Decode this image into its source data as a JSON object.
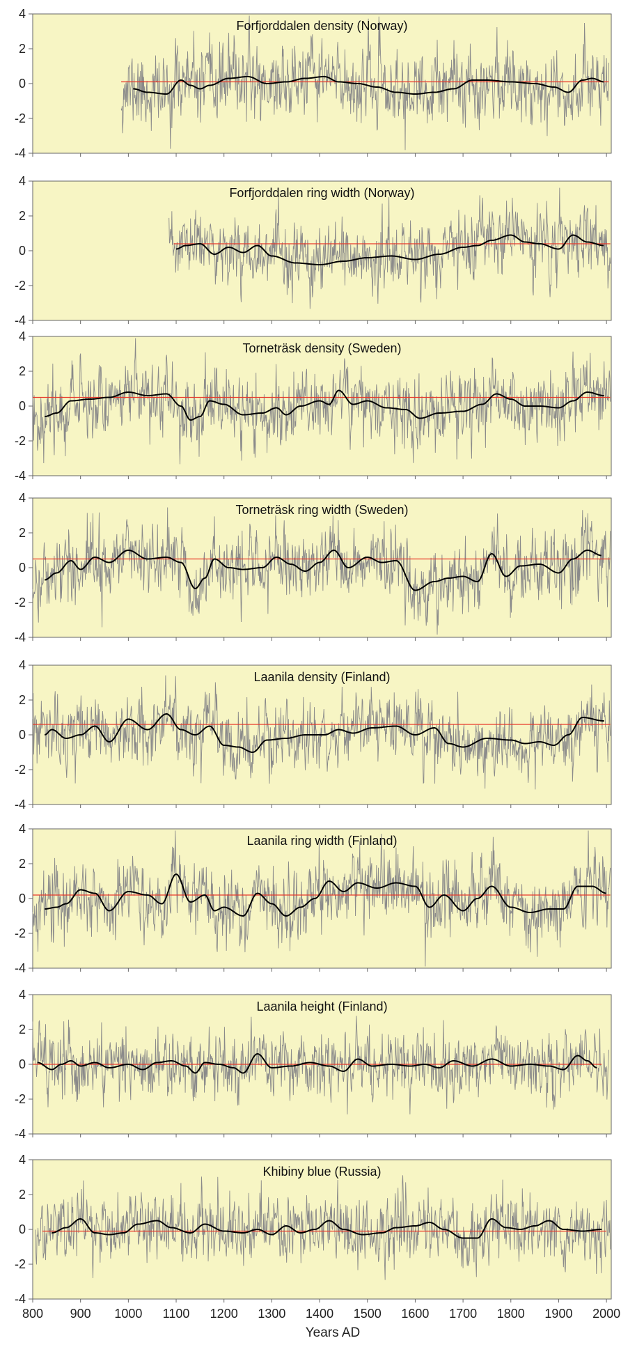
{
  "xlabel": "Years AD",
  "colors": {
    "panel_bg": "#f7f5c4",
    "raw_series": "#8a8a8a",
    "smooth_series": "#000000",
    "mean_line": "#e8392a",
    "axis": "#666666"
  },
  "x_ticks": [
    800,
    900,
    1000,
    1100,
    1200,
    1300,
    1400,
    1500,
    1600,
    1700,
    1800,
    1900,
    2000
  ],
  "chart_data": [
    {
      "type": "line",
      "title": "Forfjorddalen density (Norway)",
      "xlim": [
        800,
        2010
      ],
      "ylim": [
        -4,
        4
      ],
      "yticks": [
        4,
        2,
        0,
        -2,
        -4
      ],
      "raw": {
        "start": 985,
        "end": 2005,
        "noise": 1.0,
        "seed": 11
      },
      "mean": {
        "value": 0.1,
        "start": 985,
        "end": 2005
      },
      "smooth_start": 1010,
      "smooth_end": 1995,
      "smooth": [
        [
          1010,
          -0.3
        ],
        [
          1040,
          -0.5
        ],
        [
          1080,
          -0.6
        ],
        [
          1110,
          0.2
        ],
        [
          1130,
          -0.1
        ],
        [
          1150,
          -0.3
        ],
        [
          1170,
          -0.1
        ],
        [
          1210,
          0.3
        ],
        [
          1250,
          0.4
        ],
        [
          1290,
          0.0
        ],
        [
          1330,
          0.1
        ],
        [
          1370,
          0.3
        ],
        [
          1410,
          0.4
        ],
        [
          1440,
          0.1
        ],
        [
          1480,
          0.0
        ],
        [
          1520,
          -0.2
        ],
        [
          1560,
          -0.5
        ],
        [
          1600,
          -0.6
        ],
        [
          1640,
          -0.5
        ],
        [
          1680,
          -0.3
        ],
        [
          1720,
          0.2
        ],
        [
          1750,
          0.2
        ],
        [
          1800,
          0.1
        ],
        [
          1850,
          0.0
        ],
        [
          1890,
          -0.2
        ],
        [
          1920,
          -0.5
        ],
        [
          1950,
          0.2
        ],
        [
          1970,
          0.3
        ],
        [
          1995,
          0.1
        ]
      ]
    },
    {
      "type": "line",
      "title": "Forfjorddalen ring width (Norway)",
      "xlim": [
        800,
        2010
      ],
      "ylim": [
        -4,
        4
      ],
      "yticks": [
        4,
        2,
        0,
        -2,
        -4
      ],
      "raw": {
        "start": 1085,
        "end": 2008,
        "noise": 0.9,
        "seed": 23
      },
      "mean": {
        "value": 0.4,
        "start": 1095,
        "end": 2008
      },
      "smooth_start": 1100,
      "smooth_end": 1995,
      "smooth": [
        [
          1100,
          0.1
        ],
        [
          1120,
          0.3
        ],
        [
          1150,
          0.4
        ],
        [
          1180,
          -0.2
        ],
        [
          1210,
          0.2
        ],
        [
          1240,
          -0.1
        ],
        [
          1270,
          0.3
        ],
        [
          1300,
          -0.3
        ],
        [
          1350,
          -0.7
        ],
        [
          1400,
          -0.8
        ],
        [
          1450,
          -0.6
        ],
        [
          1500,
          -0.4
        ],
        [
          1550,
          -0.3
        ],
        [
          1600,
          -0.5
        ],
        [
          1650,
          -0.2
        ],
        [
          1700,
          0.2
        ],
        [
          1730,
          0.3
        ],
        [
          1760,
          0.6
        ],
        [
          1800,
          0.9
        ],
        [
          1830,
          0.5
        ],
        [
          1860,
          0.4
        ],
        [
          1900,
          0.1
        ],
        [
          1930,
          0.9
        ],
        [
          1960,
          0.5
        ],
        [
          1995,
          0.3
        ]
      ]
    },
    {
      "type": "line",
      "title": "Torneträsk density (Sweden)",
      "xlim": [
        800,
        2010
      ],
      "ylim": [
        -4,
        4
      ],
      "yticks": [
        4,
        2,
        0,
        -2,
        -4
      ],
      "raw": {
        "start": 800,
        "end": 2008,
        "noise": 0.95,
        "seed": 37
      },
      "mean": {
        "value": 0.5,
        "start": 800,
        "end": 2008
      },
      "smooth_start": 825,
      "smooth_end": 1995,
      "smooth": [
        [
          825,
          -0.6
        ],
        [
          850,
          -0.4
        ],
        [
          880,
          0.3
        ],
        [
          920,
          0.4
        ],
        [
          960,
          0.5
        ],
        [
          1000,
          0.8
        ],
        [
          1040,
          0.6
        ],
        [
          1080,
          0.7
        ],
        [
          1110,
          0.0
        ],
        [
          1130,
          -0.8
        ],
        [
          1150,
          -0.6
        ],
        [
          1170,
          0.3
        ],
        [
          1200,
          0.1
        ],
        [
          1240,
          -0.5
        ],
        [
          1280,
          -0.4
        ],
        [
          1310,
          -0.1
        ],
        [
          1330,
          -0.5
        ],
        [
          1360,
          0.0
        ],
        [
          1400,
          0.3
        ],
        [
          1420,
          0.1
        ],
        [
          1440,
          0.9
        ],
        [
          1470,
          0.1
        ],
        [
          1500,
          0.3
        ],
        [
          1540,
          -0.1
        ],
        [
          1580,
          -0.2
        ],
        [
          1610,
          -0.7
        ],
        [
          1650,
          -0.4
        ],
        [
          1700,
          -0.3
        ],
        [
          1740,
          0.1
        ],
        [
          1770,
          0.7
        ],
        [
          1800,
          0.4
        ],
        [
          1830,
          0.0
        ],
        [
          1860,
          0.0
        ],
        [
          1900,
          -0.1
        ],
        [
          1930,
          0.3
        ],
        [
          1960,
          0.8
        ],
        [
          1995,
          0.6
        ]
      ]
    },
    {
      "type": "line",
      "title": "Torneträsk ring width (Sweden)",
      "xlim": [
        800,
        2010
      ],
      "ylim": [
        -4,
        4
      ],
      "yticks": [
        4,
        2,
        0,
        -2,
        -4
      ],
      "raw": {
        "start": 800,
        "end": 2008,
        "noise": 0.95,
        "seed": 41
      },
      "mean": {
        "value": 0.5,
        "start": 800,
        "end": 2008
      },
      "smooth_start": 825,
      "smooth_end": 1990,
      "smooth": [
        [
          825,
          -0.7
        ],
        [
          850,
          -0.3
        ],
        [
          880,
          0.4
        ],
        [
          900,
          -0.1
        ],
        [
          930,
          0.6
        ],
        [
          960,
          0.3
        ],
        [
          1000,
          1.0
        ],
        [
          1040,
          0.5
        ],
        [
          1080,
          0.6
        ],
        [
          1110,
          0.3
        ],
        [
          1140,
          -1.2
        ],
        [
          1160,
          -0.6
        ],
        [
          1180,
          0.5
        ],
        [
          1210,
          0.0
        ],
        [
          1240,
          -0.1
        ],
        [
          1280,
          0.0
        ],
        [
          1310,
          0.6
        ],
        [
          1340,
          0.2
        ],
        [
          1370,
          -0.2
        ],
        [
          1400,
          0.3
        ],
        [
          1430,
          1.0
        ],
        [
          1460,
          0.0
        ],
        [
          1500,
          0.6
        ],
        [
          1530,
          0.3
        ],
        [
          1560,
          0.4
        ],
        [
          1600,
          -1.3
        ],
        [
          1640,
          -0.8
        ],
        [
          1670,
          -0.6
        ],
        [
          1700,
          -0.5
        ],
        [
          1730,
          -0.8
        ],
        [
          1760,
          0.8
        ],
        [
          1790,
          -0.5
        ],
        [
          1820,
          0.1
        ],
        [
          1860,
          0.2
        ],
        [
          1900,
          -0.3
        ],
        [
          1930,
          0.5
        ],
        [
          1960,
          1.0
        ],
        [
          1990,
          0.7
        ]
      ]
    },
    {
      "type": "line",
      "title": "Laanila density (Finland)",
      "xlim": [
        800,
        2010
      ],
      "ylim": [
        -4,
        4
      ],
      "yticks": [
        4,
        2,
        0,
        -2,
        -4
      ],
      "raw": {
        "start": 800,
        "end": 2008,
        "noise": 0.9,
        "seed": 53
      },
      "mean": {
        "value": 0.6,
        "start": 800,
        "end": 2008
      },
      "smooth_start": 825,
      "smooth_end": 1995,
      "smooth": [
        [
          825,
          0.0
        ],
        [
          840,
          0.3
        ],
        [
          870,
          -0.2
        ],
        [
          900,
          0.0
        ],
        [
          930,
          0.5
        ],
        [
          960,
          -0.4
        ],
        [
          1000,
          0.9
        ],
        [
          1040,
          0.3
        ],
        [
          1080,
          1.2
        ],
        [
          1110,
          0.3
        ],
        [
          1140,
          0.0
        ],
        [
          1170,
          0.5
        ],
        [
          1200,
          -0.6
        ],
        [
          1230,
          -0.7
        ],
        [
          1260,
          -1.0
        ],
        [
          1290,
          -0.3
        ],
        [
          1330,
          -0.2
        ],
        [
          1370,
          0.0
        ],
        [
          1410,
          0.0
        ],
        [
          1440,
          0.3
        ],
        [
          1470,
          0.1
        ],
        [
          1510,
          0.4
        ],
        [
          1560,
          0.5
        ],
        [
          1600,
          0.0
        ],
        [
          1640,
          0.4
        ],
        [
          1670,
          -0.5
        ],
        [
          1700,
          -0.7
        ],
        [
          1750,
          -0.2
        ],
        [
          1800,
          -0.3
        ],
        [
          1830,
          -0.5
        ],
        [
          1860,
          -0.4
        ],
        [
          1890,
          -0.6
        ],
        [
          1920,
          0.0
        ],
        [
          1950,
          1.0
        ],
        [
          1995,
          0.8
        ]
      ]
    },
    {
      "type": "line",
      "title": "Laanila ring width (Finland)",
      "xlim": [
        800,
        2010
      ],
      "ylim": [
        -4,
        4
      ],
      "yticks": [
        4,
        2,
        0,
        -2,
        -4
      ],
      "raw": {
        "start": 800,
        "end": 2008,
        "noise": 0.95,
        "seed": 67
      },
      "mean": {
        "value": 0.2,
        "start": 800,
        "end": 2008
      },
      "smooth_start": 825,
      "smooth_end": 2000,
      "smooth": [
        [
          825,
          -0.6
        ],
        [
          850,
          -0.5
        ],
        [
          870,
          -0.3
        ],
        [
          900,
          0.5
        ],
        [
          930,
          0.3
        ],
        [
          960,
          -0.7
        ],
        [
          1000,
          0.4
        ],
        [
          1040,
          0.2
        ],
        [
          1070,
          -0.3
        ],
        [
          1100,
          1.4
        ],
        [
          1130,
          -0.2
        ],
        [
          1160,
          0.2
        ],
        [
          1180,
          -0.7
        ],
        [
          1200,
          -0.5
        ],
        [
          1240,
          -1.0
        ],
        [
          1270,
          0.3
        ],
        [
          1300,
          -0.3
        ],
        [
          1330,
          -1.0
        ],
        [
          1360,
          -0.5
        ],
        [
          1390,
          0.0
        ],
        [
          1420,
          1.0
        ],
        [
          1450,
          0.4
        ],
        [
          1480,
          0.9
        ],
        [
          1520,
          0.6
        ],
        [
          1560,
          0.9
        ],
        [
          1600,
          0.7
        ],
        [
          1630,
          -0.5
        ],
        [
          1660,
          0.2
        ],
        [
          1700,
          -0.7
        ],
        [
          1730,
          0.0
        ],
        [
          1760,
          0.7
        ],
        [
          1800,
          -0.5
        ],
        [
          1840,
          -0.8
        ],
        [
          1880,
          -0.6
        ],
        [
          1910,
          -0.6
        ],
        [
          1940,
          0.7
        ],
        [
          1970,
          0.7
        ],
        [
          2000,
          0.3
        ]
      ]
    },
    {
      "type": "line",
      "title": "Laanila height (Finland)",
      "xlim": [
        800,
        2010
      ],
      "ylim": [
        -4,
        4
      ],
      "yticks": [
        4,
        2,
        0,
        -2,
        -4
      ],
      "raw": {
        "start": 800,
        "end": 2005,
        "noise": 0.9,
        "seed": 79
      },
      "mean": {
        "value": 0.0,
        "start": 800,
        "end": 1990
      },
      "smooth_start": 810,
      "smooth_end": 1980,
      "smooth": [
        [
          810,
          0.1
        ],
        [
          840,
          -0.3
        ],
        [
          860,
          0.0
        ],
        [
          880,
          0.2
        ],
        [
          900,
          -0.1
        ],
        [
          930,
          0.1
        ],
        [
          960,
          -0.2
        ],
        [
          1000,
          0.0
        ],
        [
          1030,
          -0.3
        ],
        [
          1060,
          0.1
        ],
        [
          1090,
          0.2
        ],
        [
          1120,
          -0.1
        ],
        [
          1140,
          -0.5
        ],
        [
          1160,
          0.1
        ],
        [
          1190,
          0.0
        ],
        [
          1220,
          -0.2
        ],
        [
          1240,
          -0.5
        ],
        [
          1270,
          0.6
        ],
        [
          1300,
          -0.2
        ],
        [
          1340,
          -0.1
        ],
        [
          1380,
          0.1
        ],
        [
          1420,
          -0.1
        ],
        [
          1450,
          -0.4
        ],
        [
          1480,
          0.3
        ],
        [
          1510,
          -0.1
        ],
        [
          1550,
          0.0
        ],
        [
          1590,
          -0.1
        ],
        [
          1620,
          0.0
        ],
        [
          1650,
          -0.2
        ],
        [
          1680,
          0.2
        ],
        [
          1720,
          -0.1
        ],
        [
          1760,
          0.3
        ],
        [
          1800,
          -0.1
        ],
        [
          1840,
          0.0
        ],
        [
          1880,
          -0.1
        ],
        [
          1910,
          -0.3
        ],
        [
          1940,
          0.5
        ],
        [
          1960,
          0.2
        ],
        [
          1980,
          -0.2
        ]
      ]
    },
    {
      "type": "line",
      "title": "Khibiny blue (Russia)",
      "xlim": [
        800,
        2010
      ],
      "ylim": [
        -4,
        4
      ],
      "yticks": [
        4,
        2,
        0,
        -2,
        -4
      ],
      "raw": {
        "start": 805,
        "end": 2008,
        "noise": 0.9,
        "seed": 97
      },
      "mean": {
        "value": -0.1,
        "start": 820,
        "end": 2000
      },
      "smooth_start": 840,
      "smooth_end": 1990,
      "smooth": [
        [
          840,
          -0.2
        ],
        [
          870,
          0.1
        ],
        [
          900,
          0.6
        ],
        [
          930,
          -0.2
        ],
        [
          960,
          -0.3
        ],
        [
          990,
          -0.2
        ],
        [
          1020,
          0.3
        ],
        [
          1060,
          0.5
        ],
        [
          1090,
          0.1
        ],
        [
          1130,
          -0.2
        ],
        [
          1160,
          0.3
        ],
        [
          1200,
          -0.1
        ],
        [
          1240,
          -0.2
        ],
        [
          1270,
          0.0
        ],
        [
          1300,
          -0.3
        ],
        [
          1330,
          0.2
        ],
        [
          1360,
          -0.2
        ],
        [
          1390,
          0.0
        ],
        [
          1420,
          0.5
        ],
        [
          1450,
          0.0
        ],
        [
          1490,
          -0.3
        ],
        [
          1530,
          -0.2
        ],
        [
          1560,
          0.1
        ],
        [
          1600,
          0.2
        ],
        [
          1630,
          0.4
        ],
        [
          1660,
          0.0
        ],
        [
          1700,
          -0.5
        ],
        [
          1730,
          -0.5
        ],
        [
          1760,
          0.6
        ],
        [
          1790,
          0.1
        ],
        [
          1820,
          0.0
        ],
        [
          1850,
          0.2
        ],
        [
          1880,
          0.5
        ],
        [
          1910,
          0.0
        ],
        [
          1950,
          -0.1
        ],
        [
          1990,
          0.0
        ]
      ]
    }
  ]
}
